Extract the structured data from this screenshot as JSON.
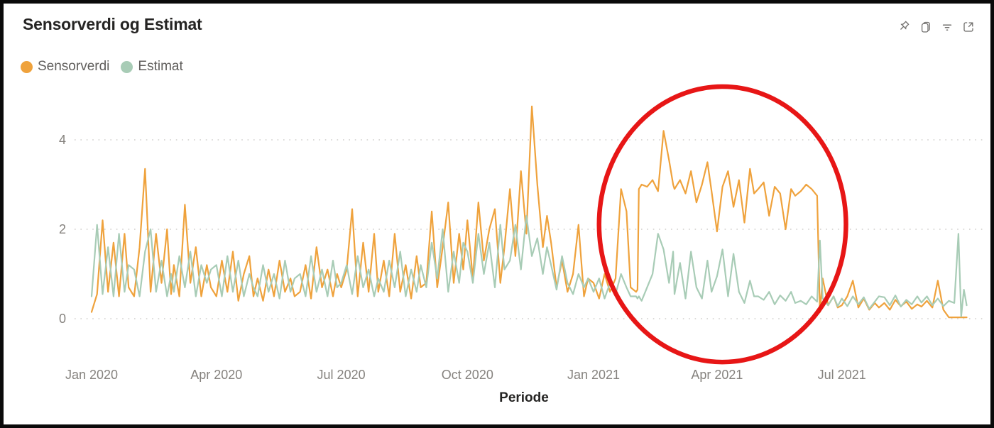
{
  "header": {
    "title": "Sensorverdi og Estimat",
    "icons": [
      "pin",
      "copy",
      "filter",
      "focus-mode"
    ]
  },
  "legend": {
    "items": [
      {
        "label": "Sensorverdi",
        "color": "#efa23c"
      },
      {
        "label": "Estimat",
        "color": "#a8ccb6"
      }
    ]
  },
  "chart_data": {
    "type": "line",
    "title": "Sensorverdi og Estimat",
    "xlabel": "Periode",
    "ylabel": "",
    "grid": "dotted-horizontal",
    "grid_color": "#cfcdcb",
    "axis_text_color": "#85827e",
    "x_range": [
      "2020-01-01",
      "2021-09-30"
    ],
    "ylim": [
      0,
      4.8
    ],
    "y_axis": {
      "ticks": [
        0,
        2,
        4
      ]
    },
    "x_axis": {
      "title": "Periode",
      "ticks": [
        {
          "label": "Jan 2020",
          "date": "2020-01-01"
        },
        {
          "label": "Apr 2020",
          "date": "2020-04-01"
        },
        {
          "label": "Jul 2020",
          "date": "2020-07-01"
        },
        {
          "label": "Oct 2020",
          "date": "2020-10-01"
        },
        {
          "label": "Jan 2021",
          "date": "2021-01-01"
        },
        {
          "label": "Apr 2021",
          "date": "2021-04-01"
        },
        {
          "label": "Jul 2021",
          "date": "2021-07-01"
        }
      ]
    },
    "x_dates": [
      "2020-01-01",
      "2020-01-05",
      "2020-01-09",
      "2020-01-13",
      "2020-01-17",
      "2020-01-21",
      "2020-01-25",
      "2020-01-28",
      "2020-02-01",
      "2020-02-05",
      "2020-02-09",
      "2020-02-13",
      "2020-02-17",
      "2020-02-21",
      "2020-02-25",
      "2020-02-28",
      "2020-03-01",
      "2020-03-05",
      "2020-03-09",
      "2020-03-13",
      "2020-03-17",
      "2020-03-21",
      "2020-03-25",
      "2020-03-28",
      "2020-04-01",
      "2020-04-05",
      "2020-04-09",
      "2020-04-13",
      "2020-04-17",
      "2020-04-21",
      "2020-04-25",
      "2020-04-28",
      "2020-05-01",
      "2020-05-05",
      "2020-05-09",
      "2020-05-13",
      "2020-05-17",
      "2020-05-21",
      "2020-05-25",
      "2020-05-28",
      "2020-06-01",
      "2020-06-05",
      "2020-06-09",
      "2020-06-13",
      "2020-06-17",
      "2020-06-21",
      "2020-06-25",
      "2020-06-28",
      "2020-07-01",
      "2020-07-05",
      "2020-07-09",
      "2020-07-13",
      "2020-07-17",
      "2020-07-21",
      "2020-07-25",
      "2020-07-28",
      "2020-08-01",
      "2020-08-05",
      "2020-08-09",
      "2020-08-13",
      "2020-08-17",
      "2020-08-21",
      "2020-08-25",
      "2020-08-28",
      "2020-09-01",
      "2020-09-05",
      "2020-09-09",
      "2020-09-13",
      "2020-09-17",
      "2020-09-21",
      "2020-09-25",
      "2020-09-28",
      "2020-10-01",
      "2020-10-05",
      "2020-10-09",
      "2020-10-13",
      "2020-10-17",
      "2020-10-21",
      "2020-10-25",
      "2020-10-28",
      "2020-11-01",
      "2020-11-05",
      "2020-11-09",
      "2020-11-13",
      "2020-11-17",
      "2020-11-21",
      "2020-11-25",
      "2020-11-28",
      "2020-12-01",
      "2020-12-05",
      "2020-12-09",
      "2020-12-13",
      "2020-12-17",
      "2020-12-21",
      "2020-12-25",
      "2020-12-28",
      "2021-01-01",
      "2021-01-05",
      "2021-01-09",
      "2021-01-13",
      "2021-01-17",
      "2021-01-21",
      "2021-01-25",
      "2021-01-28",
      "2021-02-01",
      "2021-02-02",
      "2021-02-03",
      "2021-02-05",
      "2021-02-09",
      "2021-02-13",
      "2021-02-17",
      "2021-02-21",
      "2021-02-25",
      "2021-02-28",
      "2021-03-01",
      "2021-03-05",
      "2021-03-09",
      "2021-03-13",
      "2021-03-17",
      "2021-03-21",
      "2021-03-25",
      "2021-03-28",
      "2021-04-01",
      "2021-04-05",
      "2021-04-09",
      "2021-04-13",
      "2021-04-17",
      "2021-04-21",
      "2021-04-25",
      "2021-04-28",
      "2021-05-01",
      "2021-05-05",
      "2021-05-09",
      "2021-05-13",
      "2021-05-17",
      "2021-05-21",
      "2021-05-25",
      "2021-05-28",
      "2021-06-01",
      "2021-06-05",
      "2021-06-09",
      "2021-06-13",
      "2021-06-15",
      "2021-06-17",
      "2021-06-21",
      "2021-06-25",
      "2021-06-28",
      "2021-07-01",
      "2021-07-05",
      "2021-07-09",
      "2021-07-13",
      "2021-07-17",
      "2021-07-21",
      "2021-07-25",
      "2021-07-28",
      "2021-08-01",
      "2021-08-05",
      "2021-08-09",
      "2021-08-13",
      "2021-08-17",
      "2021-08-21",
      "2021-08-25",
      "2021-08-28",
      "2021-09-01",
      "2021-09-05",
      "2021-09-09",
      "2021-09-13",
      "2021-09-17",
      "2021-09-21",
      "2021-09-24",
      "2021-09-26",
      "2021-09-28",
      "2021-09-30"
    ],
    "series": [
      {
        "name": "Sensorverdi",
        "color": "#efa23c",
        "values": [
          0.15,
          0.55,
          2.2,
          0.6,
          1.7,
          0.5,
          1.9,
          0.7,
          0.5,
          1.6,
          3.35,
          0.6,
          1.9,
          0.8,
          2.0,
          0.55,
          1.2,
          0.5,
          2.55,
          0.8,
          1.6,
          0.5,
          1.2,
          0.7,
          0.5,
          1.3,
          0.6,
          1.5,
          0.4,
          1.0,
          1.4,
          0.5,
          0.9,
          0.4,
          1.1,
          0.5,
          1.3,
          0.6,
          0.9,
          0.5,
          0.6,
          1.2,
          0.45,
          1.6,
          0.7,
          1.1,
          0.5,
          1.0,
          0.7,
          1.1,
          2.45,
          0.5,
          1.7,
          0.6,
          1.9,
          0.6,
          1.3,
          0.5,
          1.9,
          0.6,
          1.2,
          0.45,
          1.4,
          0.7,
          0.8,
          2.4,
          0.7,
          1.6,
          2.6,
          0.8,
          1.9,
          1.1,
          2.2,
          0.9,
          2.6,
          1.3,
          2.0,
          2.45,
          0.8,
          1.6,
          2.9,
          1.4,
          3.3,
          1.9,
          4.75,
          3.0,
          1.6,
          2.3,
          1.7,
          0.7,
          1.3,
          0.6,
          1.0,
          2.1,
          0.5,
          0.9,
          0.8,
          0.45,
          1.0,
          0.6,
          0.9,
          2.9,
          2.4,
          0.7,
          0.6,
          0.65,
          2.9,
          3.0,
          2.95,
          3.1,
          2.85,
          4.2,
          3.55,
          3.0,
          2.9,
          3.1,
          2.8,
          3.3,
          2.6,
          3.0,
          3.5,
          2.85,
          1.95,
          2.95,
          3.3,
          2.5,
          3.1,
          2.15,
          3.35,
          2.8,
          2.9,
          3.05,
          2.3,
          2.95,
          2.8,
          2.0,
          2.9,
          2.75,
          2.85,
          3.0,
          2.9,
          2.75,
          0.15,
          0.9,
          0.3,
          0.5,
          0.25,
          0.3,
          0.5,
          0.85,
          0.25,
          0.45,
          0.2,
          0.35,
          0.25,
          0.35,
          0.2,
          0.42,
          0.28,
          0.38,
          0.22,
          0.32,
          0.27,
          0.4,
          0.25,
          0.85,
          0.2,
          0.03,
          0.03,
          0.03,
          0.03,
          0.03,
          0.03
        ]
      },
      {
        "name": "Estimat",
        "color": "#a8ccb6",
        "values": [
          0.5,
          2.1,
          0.55,
          1.6,
          0.5,
          1.9,
          0.6,
          1.2,
          1.1,
          0.5,
          1.5,
          2.0,
          0.6,
          1.3,
          0.5,
          1.0,
          0.6,
          1.4,
          0.7,
          1.5,
          0.5,
          1.2,
          0.8,
          1.1,
          1.2,
          0.5,
          1.4,
          0.6,
          1.3,
          0.5,
          1.0,
          0.7,
          0.5,
          1.2,
          0.6,
          1.0,
          0.45,
          1.3,
          0.6,
          0.9,
          1.0,
          0.5,
          1.4,
          0.6,
          1.1,
          0.5,
          1.3,
          0.7,
          0.8,
          1.2,
          0.55,
          1.4,
          0.7,
          1.1,
          0.5,
          0.9,
          0.6,
          1.3,
          0.7,
          1.5,
          0.5,
          1.1,
          0.6,
          1.2,
          0.7,
          1.7,
          0.9,
          2.0,
          0.6,
          1.5,
          0.8,
          1.7,
          1.5,
          0.8,
          1.9,
          1.0,
          1.7,
          0.7,
          2.1,
          1.1,
          1.3,
          2.1,
          1.1,
          2.3,
          1.4,
          1.8,
          1.0,
          1.6,
          1.2,
          0.65,
          1.4,
          0.8,
          0.55,
          1.0,
          0.7,
          0.9,
          0.6,
          0.9,
          0.45,
          0.8,
          0.55,
          1.0,
          0.7,
          0.5,
          0.5,
          0.45,
          0.5,
          0.4,
          0.7,
          1.0,
          1.9,
          1.55,
          0.8,
          1.5,
          0.55,
          1.25,
          0.45,
          1.5,
          0.7,
          0.45,
          1.3,
          0.6,
          0.95,
          1.55,
          0.5,
          1.45,
          0.6,
          0.35,
          0.85,
          0.5,
          0.5,
          0.42,
          0.6,
          0.32,
          0.52,
          0.4,
          0.6,
          0.35,
          0.4,
          0.32,
          0.5,
          0.38,
          1.75,
          0.45,
          0.3,
          0.5,
          0.28,
          0.45,
          0.28,
          0.5,
          0.32,
          0.48,
          0.22,
          0.38,
          0.5,
          0.48,
          0.3,
          0.52,
          0.27,
          0.42,
          0.32,
          0.5,
          0.36,
          0.5,
          0.3,
          0.45,
          0.28,
          0.4,
          0.35,
          1.9,
          0.05,
          0.65,
          0.3
        ]
      }
    ],
    "annotation": {
      "shape": "ellipse",
      "color": "#e60c0c",
      "stroke_width": 6.5,
      "x_from": "2021-01-05",
      "x_to": "2021-07-04",
      "y_from": -0.97,
      "y_to": 5.19
    }
  }
}
